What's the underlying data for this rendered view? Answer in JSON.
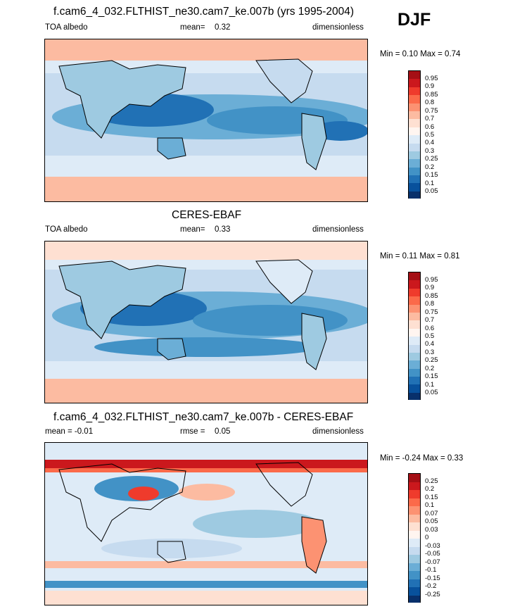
{
  "season": "DJF",
  "panels": [
    {
      "title": "f.cam6_4_032.FLTHIST_ne30.cam7_ke.007b (yrs 1995-2004)",
      "left": "TOA albedo",
      "center_label": "mean=",
      "center_value": "0.32",
      "right": "dimensionless",
      "minmax": "Min =  0.10 Max =  0.74"
    },
    {
      "title": "CERES-EBAF",
      "left": "TOA albedo",
      "center_label": "mean=",
      "center_value": "0.33",
      "right": "dimensionless",
      "minmax": "Min =  0.11 Max =  0.81"
    },
    {
      "title": "f.cam6_4_032.FLTHIST_ne30.cam7_ke.007b - CERES-EBAF",
      "left": "mean =  -0.01",
      "center_label": "rmse =",
      "center_value": "0.05",
      "right": "dimensionless",
      "minmax": "Min =  -0.24 Max =  0.33"
    }
  ],
  "colorbar_abs": {
    "labels": [
      "0.95",
      "0.9",
      "0.85",
      "0.8",
      "0.75",
      "0.7",
      "0.6",
      "0.5",
      "0.4",
      "0.3",
      "0.25",
      "0.2",
      "0.15",
      "0.1",
      "0.05"
    ],
    "colors": [
      "#a50f15",
      "#cb181d",
      "#ef3b2c",
      "#fb6a4a",
      "#fc9272",
      "#fcbba1",
      "#fee0d2",
      "#fff5f0",
      "#deebf7",
      "#c6dbef",
      "#9ecae1",
      "#6baed6",
      "#4292c6",
      "#2171b5",
      "#08519c",
      "#08306b"
    ]
  },
  "colorbar_diff": {
    "labels": [
      "0.25",
      "0.2",
      "0.15",
      "0.1",
      "0.07",
      "0.05",
      "0.03",
      "0",
      "-0.03",
      "-0.05",
      "-0.07",
      "-0.1",
      "-0.15",
      "-0.2",
      "-0.25"
    ],
    "colors": [
      "#a50f15",
      "#cb181d",
      "#ef3b2c",
      "#fb6a4a",
      "#fc9272",
      "#fcbba1",
      "#fee0d2",
      "#fff5f0",
      "#deebf7",
      "#c6dbef",
      "#9ecae1",
      "#6baed6",
      "#4292c6",
      "#2171b5",
      "#08519c",
      "#08306b"
    ]
  }
}
